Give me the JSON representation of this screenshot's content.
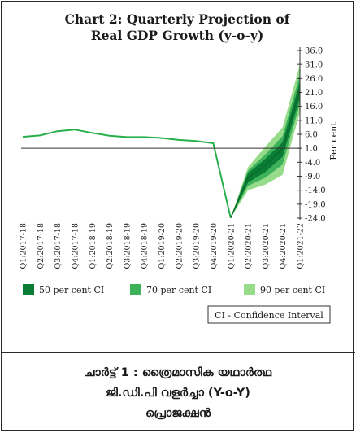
{
  "chart_data": {
    "type": "line",
    "title": "Chart 2: Quarterly Projection of",
    "subtitle": "Real GDP Growth (y-o-y)",
    "ylabel": "Per cent",
    "xlabel": "",
    "ylim": [
      -24.0,
      36.0
    ],
    "y_ticks": [
      "36.0",
      "31.0",
      "26.0",
      "21.0",
      "16.0",
      "11.0",
      "6.0",
      "1.0",
      "-4.0",
      "-9.0",
      "-14.0",
      "-19.0",
      "-24.0"
    ],
    "y_tick_values": [
      36,
      31,
      26,
      21,
      16,
      11,
      6,
      1,
      -4,
      -9,
      -14,
      -19,
      -24
    ],
    "x": [
      "Q1:2017-18",
      "Q2:2017-18",
      "Q3:2017-18",
      "Q4:2017-18",
      "Q1:2018-19",
      "Q2:2018-19",
      "Q3:2018-19",
      "Q4:2018-19",
      "Q1:2019-20",
      "Q2:2019-20",
      "Q3:2019-20",
      "Q4:2019-20",
      "Q1:2020-21",
      "Q2:2020-21",
      "Q3:2020-21",
      "Q4:2020-21",
      "Q1:2021-22"
    ],
    "series": [
      {
        "values": [
          5.1,
          5.6,
          7.1,
          7.7,
          6.5,
          5.5,
          5.0,
          5.0,
          4.7,
          4.0,
          3.6,
          2.8,
          -23.9,
          null,
          null,
          null,
          null
        ]
      }
    ],
    "projection": {
      "start_index": 12,
      "median": [
        -23.9,
        -9.7,
        -5.0,
        0.9,
        21.8
      ],
      "ci50_lo": [
        -23.9,
        -11.3,
        -7.5,
        -2.0,
        19.0
      ],
      "ci50_hi": [
        -23.9,
        -7.9,
        -2.8,
        3.2,
        24.8
      ],
      "ci70_lo": [
        -23.9,
        -12.5,
        -9.5,
        -4.8,
        17.0
      ],
      "ci70_hi": [
        -23.9,
        -7.0,
        -1.2,
        5.4,
        27.3
      ],
      "ci90_lo": [
        -23.9,
        -14.0,
        -12.0,
        -8.5,
        14.0
      ],
      "ci90_hi": [
        -23.9,
        -5.8,
        1.6,
        8.5,
        31.0
      ]
    },
    "legend": [
      {
        "label": "50 per cent CI",
        "color": "#0a7d34"
      },
      {
        "label": "70 per cent CI",
        "color": "#3db25a"
      },
      {
        "label": "90 per cent CI",
        "color": "#96dc8a"
      }
    ],
    "note": "CI - Confidence Interval",
    "line_color": "#27b04a",
    "grid": false,
    "legend_position": "bottom"
  },
  "caption": {
    "line1": "ചാർട്ട് 1 : ത്രൈമാസിക യഥാർത്ഥ",
    "line2": "ജി.ഡി.പി വളർച്ചാ (Y-o-Y)",
    "line3": "പ്രൊജക്ഷൻ"
  }
}
